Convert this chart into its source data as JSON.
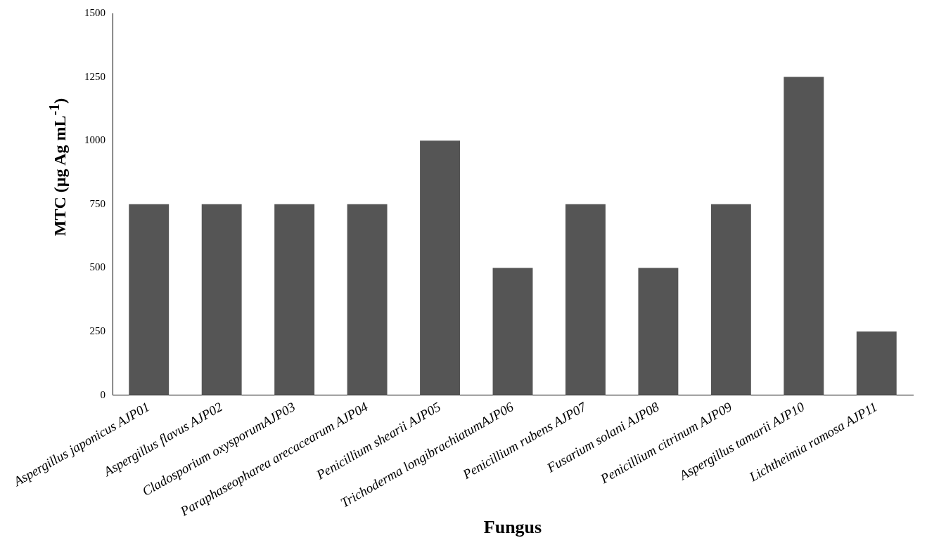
{
  "chart_data": {
    "type": "bar",
    "categories": [
      "Aspergillus japonicus AJP01",
      "Aspergillus flavus AJP02",
      "Cladosporium oxysporumAJP03",
      "Paraphaseopharea arecacearum AJP04",
      "Penicillium shearii AJP05",
      "Trichoderma longibrachiatumAJP06",
      "Penicillium rubens AJP07",
      "Fusarium solani AJP08",
      "Penicillium citrinum AJP09",
      "Aspergillus tamarii AJP10",
      "Lichtheimia ramosa AJP11"
    ],
    "values": [
      750,
      750,
      750,
      750,
      1000,
      500,
      750,
      500,
      750,
      1250,
      250
    ],
    "color": "#555555",
    "xlabel": "Fungus",
    "ylabel": "MTC (µg Ag mL$^{-1}$)",
    "ylim": [
      0,
      1500
    ],
    "yticks": [
      0,
      250,
      500,
      750,
      1000,
      1250,
      1500
    ],
    "grid": false
  }
}
